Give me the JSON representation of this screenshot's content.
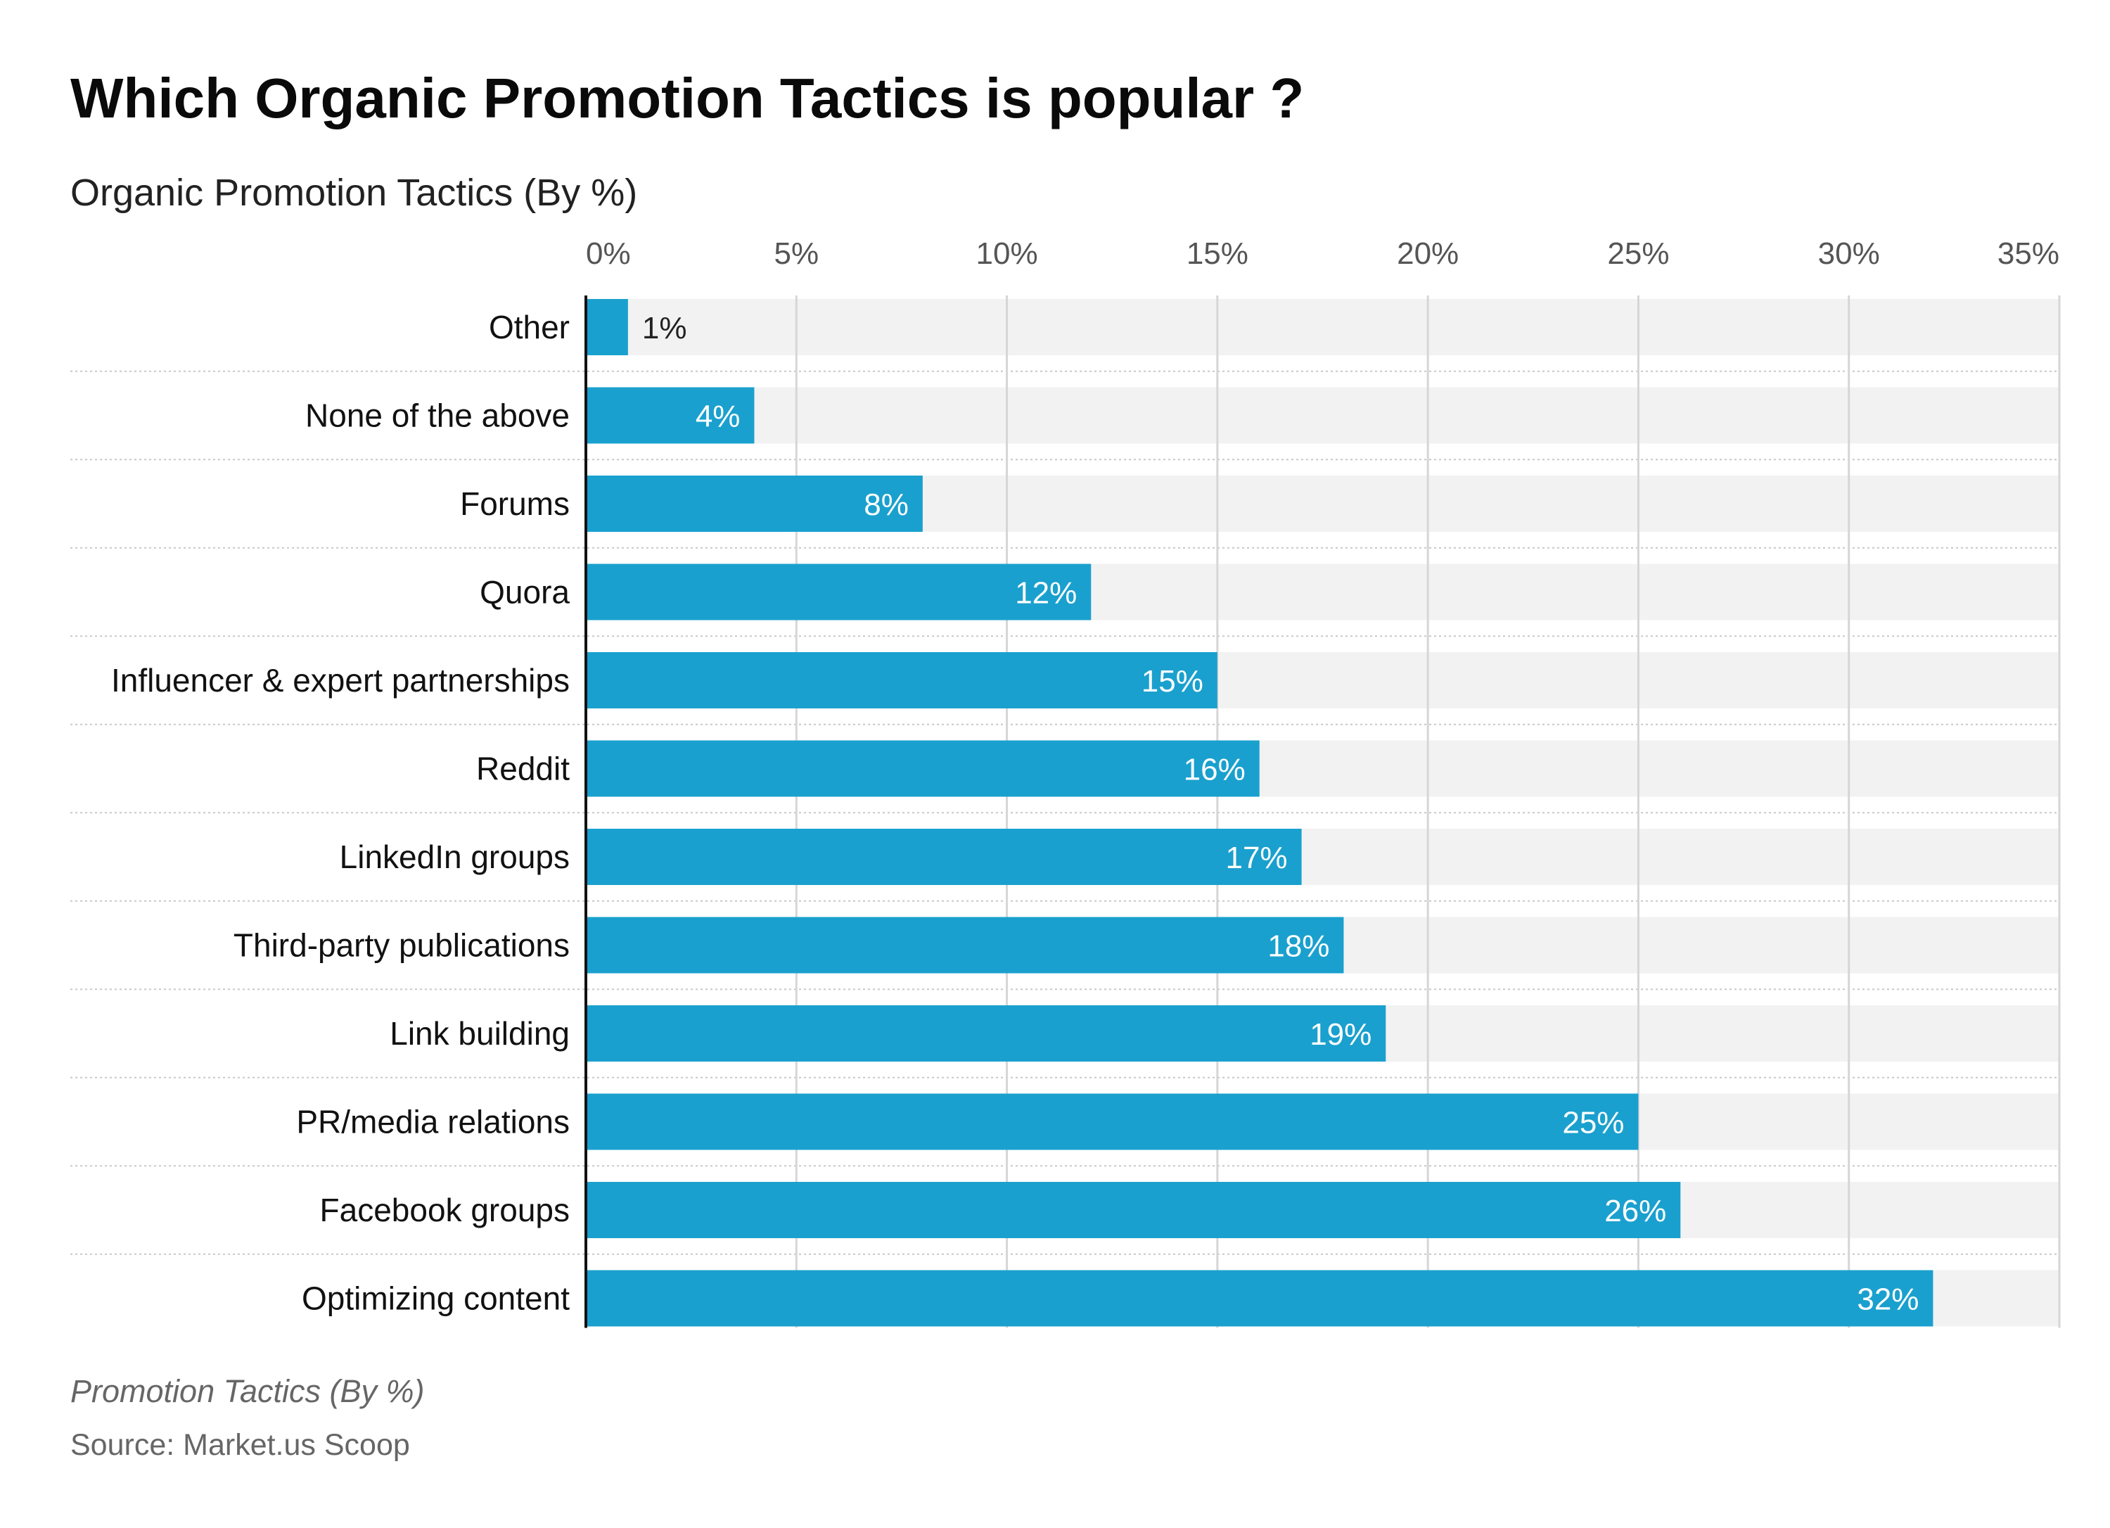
{
  "colors": {
    "bar": "#1aa0ce",
    "track": "#f2f2f2",
    "grid": "#d6d6d6",
    "separator": "#c8c8c8",
    "label_inside": "#ffffff",
    "label_outside": "#222222"
  },
  "footer": {
    "notes": "Promotion Tactics (By %)",
    "source": "Source: Market.us Scoop"
  },
  "chart_data": {
    "type": "bar",
    "orientation": "horizontal",
    "title": "Which Organic Promotion Tactics is popular ?",
    "subtitle": "Organic Promotion Tactics (By %)",
    "categories": [
      "Other",
      "None of the above",
      "Forums",
      "Quora",
      "Influencer & expert partnerships",
      "Reddit",
      "LinkedIn groups",
      "Third-party publications",
      "Link building",
      "PR/media relations",
      "Facebook groups",
      "Optimizing content"
    ],
    "values": [
      1,
      4,
      8,
      12,
      15,
      16,
      17,
      18,
      19,
      25,
      26,
      32
    ],
    "value_labels": [
      "1%",
      "4%",
      "8%",
      "12%",
      "15%",
      "16%",
      "17%",
      "18%",
      "19%",
      "25%",
      "26%",
      "32%"
    ],
    "xlim": [
      0,
      35
    ],
    "xticks": [
      0,
      5,
      10,
      15,
      20,
      25,
      30,
      35
    ],
    "xtick_labels": [
      "0%",
      "5%",
      "10%",
      "15%",
      "20%",
      "25%",
      "30%",
      "35%"
    ],
    "grid": true,
    "legend": "none"
  }
}
